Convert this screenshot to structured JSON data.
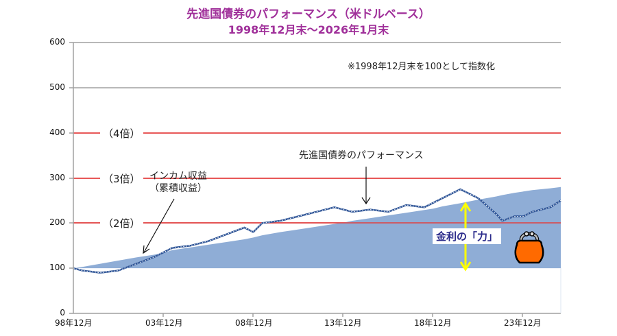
{
  "title": {
    "line1": "先進国債券のパフォーマンス（米ドルベース）",
    "line2": "1998年12月末～2026年1月末"
  },
  "note": "※1998年12月末を100として指数化",
  "annotations": {
    "income": "インカム収益",
    "income_sub": "（累積収益）",
    "performance": "先進国債券のパフォーマンス",
    "interest_power": "金利の「力」"
  },
  "multiples": {
    "x2": "（2倍）",
    "x3": "（3倍）",
    "x4": "（4倍）"
  },
  "icons": {
    "purse": "purse-icon"
  },
  "colors": {
    "title": "#a0309a",
    "area": "#8fadd6",
    "line": "#2f5597",
    "reference_lines": "#e02020",
    "arrow": "#ffff00",
    "purse": "#ff6a00"
  },
  "chart_data": {
    "type": "line",
    "title": "先進国債券のパフォーマンス（米ドルベース） 1998年12月末～2026年1月末",
    "subtitle": "※1998年12月末を100として指数化",
    "xlabel": "",
    "ylabel": "",
    "ylim": [
      0,
      600
    ],
    "yticks": [
      "0",
      "100",
      "200",
      "300",
      "400",
      "500",
      "600"
    ],
    "xticks": [
      "98年12月",
      "03年12月",
      "08年12月",
      "13年12月",
      "18年12月",
      "23年12月"
    ],
    "grid": true,
    "reference_lines": [
      {
        "y": 200,
        "label": "（2倍）"
      },
      {
        "y": 300,
        "label": "（3倍）"
      },
      {
        "y": 400,
        "label": "（4倍）"
      }
    ],
    "x": [
      "1998-12",
      "1999-06",
      "2000-06",
      "2001-06",
      "2002-06",
      "2003-06",
      "2003-12",
      "2004-06",
      "2005-06",
      "2006-06",
      "2007-06",
      "2008-06",
      "2008-12",
      "2009-06",
      "2010-06",
      "2011-06",
      "2012-06",
      "2013-06",
      "2013-12",
      "2014-06",
      "2015-06",
      "2016-06",
      "2017-06",
      "2018-06",
      "2018-12",
      "2019-06",
      "2020-06",
      "2020-12",
      "2021-06",
      "2022-06",
      "2022-10",
      "2023-06",
      "2023-12",
      "2024-06",
      "2025-06",
      "2026-01"
    ],
    "series": [
      {
        "name": "先進国債券のパフォーマンス",
        "type": "line",
        "values": [
          100,
          95,
          90,
          95,
          110,
          125,
          135,
          145,
          150,
          160,
          175,
          190,
          180,
          200,
          205,
          215,
          225,
          235,
          230,
          225,
          230,
          225,
          240,
          235,
          245,
          255,
          275,
          265,
          255,
          220,
          205,
          215,
          215,
          225,
          235,
          250
        ]
      },
      {
        "name": "インカム収益（累積収益）",
        "type": "area",
        "values": [
          100,
          103,
          110,
          117,
          124,
          130,
          134,
          140,
          146,
          152,
          158,
          164,
          168,
          173,
          180,
          186,
          192,
          198,
          201,
          205,
          211,
          217,
          223,
          229,
          232,
          237,
          244,
          248,
          252,
          259,
          262,
          267,
          270,
          273,
          277,
          280
        ]
      }
    ]
  }
}
